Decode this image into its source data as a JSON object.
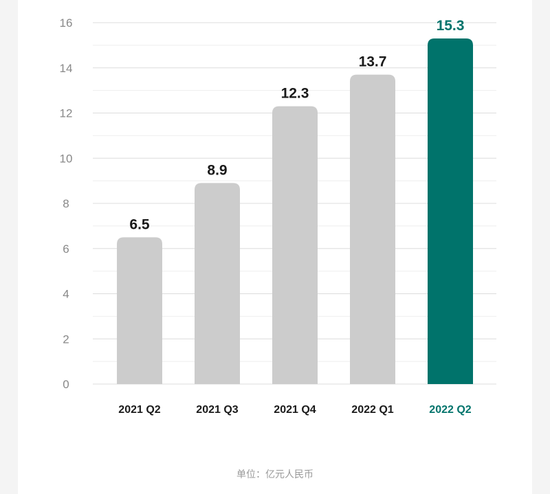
{
  "chart_data": {
    "type": "bar",
    "categories": [
      "2021 Q2",
      "2021 Q3",
      "2021 Q4",
      "2022 Q1",
      "2022 Q2"
    ],
    "values": [
      6.5,
      8.9,
      12.3,
      13.7,
      15.3
    ],
    "value_labels": [
      "6.5",
      "8.9",
      "12.3",
      "13.7",
      "15.3"
    ],
    "highlight_index": 4,
    "ylim": [
      0,
      16
    ],
    "yticks": [
      0,
      2,
      4,
      6,
      8,
      10,
      12,
      14,
      16
    ],
    "grid": true,
    "title": "",
    "xlabel": "",
    "ylabel": "",
    "colors": {
      "bar": "#cccccc",
      "highlight": "#00736b",
      "label": "#1a1a1a",
      "tick": "#888888",
      "grid": "#dcdcdc"
    }
  },
  "footer": {
    "unit_note": "单位：亿元人民币"
  }
}
